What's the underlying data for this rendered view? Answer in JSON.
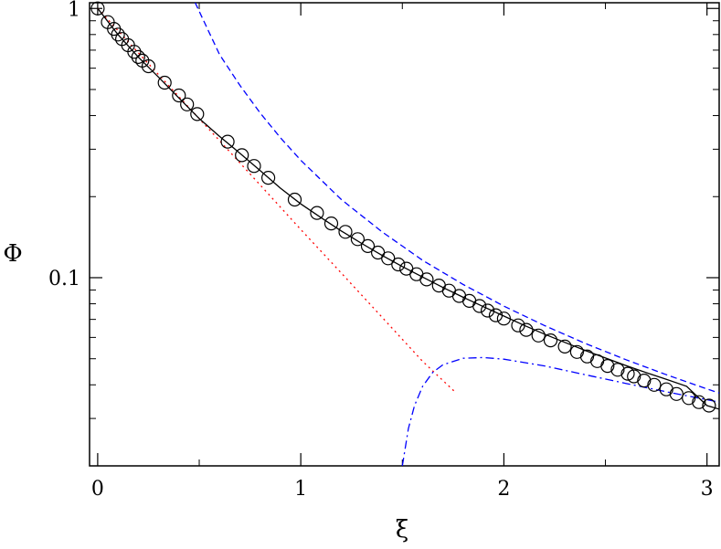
{
  "chart_data": {
    "type": "line",
    "xlabel": "ξ",
    "ylabel": "Φ",
    "xlim": [
      -0.04,
      3.06
    ],
    "ylim": [
      0.02,
      1.05
    ],
    "yscale": "log",
    "grid": false,
    "x_ticks": [
      0,
      1,
      2,
      3
    ],
    "x_tick_labels": [
      "0",
      "1",
      "2",
      "3"
    ],
    "y_ticks": [
      0.1,
      1
    ],
    "y_tick_labels": [
      "0.1",
      "1"
    ],
    "colors": {
      "data": "#000000",
      "fit": "#000000",
      "small_xi": "#ff0000",
      "large_xi": "#0000ff",
      "large_xi_corrected": "#0000ff"
    },
    "series": [
      {
        "key": "data",
        "style": "markers",
        "marker": "open-circle",
        "x": [
          0.0,
          0.05,
          0.08,
          0.1,
          0.12,
          0.15,
          0.18,
          0.2,
          0.22,
          0.25,
          0.33,
          0.4,
          0.44,
          0.49,
          0.64,
          0.71,
          0.77,
          0.84,
          0.97,
          1.08,
          1.15,
          1.22,
          1.28,
          1.33,
          1.38,
          1.43,
          1.48,
          1.52,
          1.57,
          1.62,
          1.68,
          1.73,
          1.78,
          1.83,
          1.88,
          1.92,
          1.96,
          2.0,
          2.07,
          2.11,
          2.17,
          2.23,
          2.3,
          2.36,
          2.41,
          2.46,
          2.51,
          2.56,
          2.61,
          2.64,
          2.69,
          2.74,
          2.8,
          2.85,
          2.91,
          2.96,
          3.01
        ],
        "y": [
          1.0,
          0.89,
          0.84,
          0.8,
          0.77,
          0.73,
          0.69,
          0.66,
          0.64,
          0.61,
          0.53,
          0.475,
          0.44,
          0.405,
          0.32,
          0.285,
          0.26,
          0.235,
          0.195,
          0.174,
          0.159,
          0.148,
          0.139,
          0.131,
          0.124,
          0.118,
          0.112,
          0.108,
          0.103,
          0.0985,
          0.0935,
          0.0895,
          0.0855,
          0.082,
          0.0785,
          0.0755,
          0.0725,
          0.0705,
          0.0665,
          0.064,
          0.061,
          0.0585,
          0.0555,
          0.053,
          0.051,
          0.049,
          0.047,
          0.0455,
          0.044,
          0.043,
          0.0415,
          0.04,
          0.0385,
          0.037,
          0.0357,
          0.0345,
          0.0335
        ]
      },
      {
        "key": "fit",
        "style": "solid",
        "x": [
          0.0,
          0.1,
          0.2,
          0.3,
          0.4,
          0.5,
          0.6,
          0.7,
          0.8,
          0.9,
          1.0,
          1.1,
          1.2,
          1.3,
          1.4,
          1.5,
          1.6,
          1.7,
          1.8,
          1.9,
          2.0,
          2.1,
          2.2,
          2.3,
          2.4,
          2.5,
          2.6,
          2.7,
          2.8,
          2.9,
          3.0,
          3.06
        ],
        "y": [
          1.0,
          0.8,
          0.66,
          0.555,
          0.465,
          0.39,
          0.335,
          0.29,
          0.25,
          0.215,
          0.188,
          0.167,
          0.149,
          0.134,
          0.121,
          0.11,
          0.1005,
          0.092,
          0.0845,
          0.078,
          0.072,
          0.0665,
          0.0617,
          0.0575,
          0.0537,
          0.0503,
          0.0472,
          0.0444,
          0.0419,
          0.0395,
          0.0335,
          0.0325
        ]
      },
      {
        "key": "small_xi",
        "style": "dotted",
        "x": [
          0.0,
          0.2,
          0.4,
          0.6,
          0.8,
          1.0,
          1.2,
          1.4,
          1.6,
          1.76
        ],
        "y": [
          1.0,
          0.685,
          0.47,
          0.323,
          0.221,
          0.151,
          0.104,
          0.0713,
          0.0489,
          0.0376
        ]
      },
      {
        "key": "large_xi",
        "style": "dashed",
        "x": [
          0.48,
          0.6,
          0.7,
          0.8,
          0.9,
          1.0,
          1.2,
          1.4,
          1.6,
          1.8,
          2.0,
          2.2,
          2.4,
          2.6,
          2.8,
          3.0,
          3.06
        ],
        "y": [
          1.05,
          0.675,
          0.518,
          0.409,
          0.331,
          0.273,
          0.195,
          0.148,
          0.116,
          0.0943,
          0.0784,
          0.0664,
          0.057,
          0.0496,
          0.0436,
          0.0386,
          0.0373
        ]
      },
      {
        "key": "large_xi_corrected",
        "style": "dashdot",
        "x": [
          1.5,
          1.53,
          1.56,
          1.6,
          1.65,
          1.7,
          1.8,
          1.9,
          2.0,
          2.2,
          2.4,
          2.6,
          2.8,
          3.0,
          3.06
        ],
        "y": [
          0.02,
          0.0275,
          0.0335,
          0.0395,
          0.0445,
          0.0475,
          0.0502,
          0.0505,
          0.0498,
          0.047,
          0.0436,
          0.0405,
          0.0377,
          0.0352,
          0.0345
        ]
      }
    ]
  }
}
